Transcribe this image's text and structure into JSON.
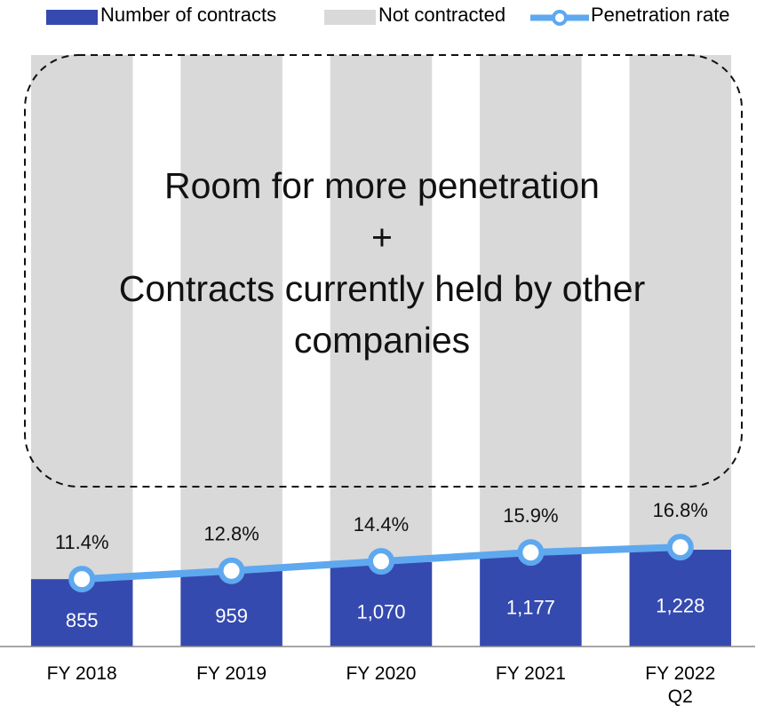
{
  "chart_data": {
    "type": "bar",
    "categories": [
      "FY 2018",
      "FY 2019",
      "FY 2020",
      "FY 2021",
      "FY 2022 Q2"
    ],
    "series": [
      {
        "name": "Number of contracts",
        "color": "#354aaf",
        "values": [
          855,
          959,
          1070,
          1177,
          1228
        ],
        "value_labels": [
          "855",
          "959",
          "1,070",
          "1,177",
          "1,228"
        ]
      },
      {
        "name": "Not contracted",
        "color": "#d9d9d9",
        "values": [
          6645,
          6541,
          6430,
          6323,
          6272
        ]
      },
      {
        "name": "Penetration rate",
        "color": "#5ea8ef",
        "axis": "y2",
        "values": [
          11.4,
          12.8,
          14.4,
          15.9,
          16.8
        ],
        "value_labels": [
          "11.4%",
          "12.8%",
          "14.4%",
          "15.9%",
          "16.8%"
        ]
      }
    ],
    "ylim": [
      0,
      7500
    ],
    "y2lim": [
      0,
      100
    ],
    "annotation": [
      "Room for more penetration",
      "+",
      "Contracts currently held by other companies"
    ]
  }
}
